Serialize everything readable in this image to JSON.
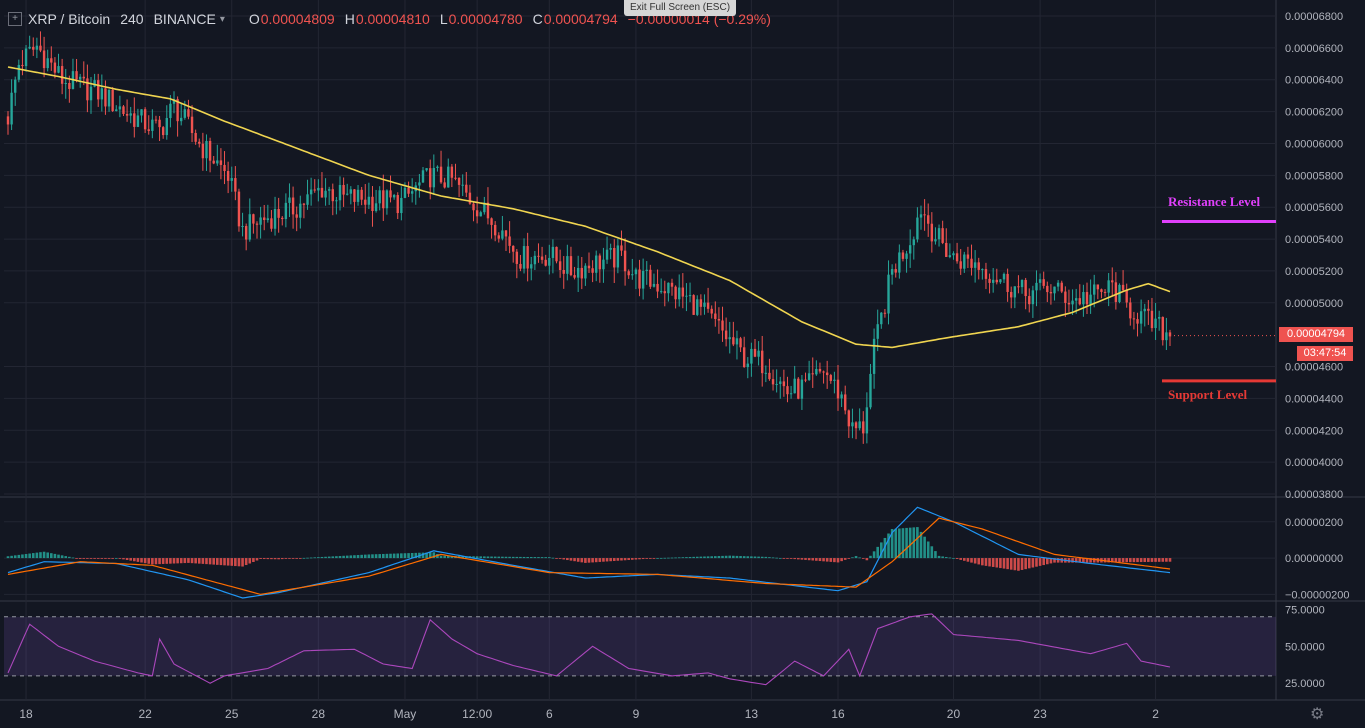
{
  "header": {
    "symbol": "XRP / Bitcoin",
    "interval": "240",
    "exchange": "BINANCE",
    "o_label": "O",
    "o_value": "0.00004809",
    "h_label": "H",
    "h_value": "0.00004810",
    "l_label": "L",
    "l_value": "0.00004780",
    "c_label": "C",
    "c_value": "0.00004794",
    "change": "−0.00000014 (−0.29%)"
  },
  "fullscreen": {
    "exit_label": "Exit Full Screen (ESC)"
  },
  "icons": {
    "toggle": "expand-icon",
    "chevron": "chevron-down-icon",
    "settings": "gear-icon"
  },
  "colors": {
    "background": "#131722",
    "up": "#26a69a",
    "down": "#ef5350",
    "ma": "#f0d550",
    "macd": "#2196f3",
    "signal": "#ff6d00",
    "rsi": "#ab47bc",
    "resistance": "#e040fb",
    "support": "#e53935"
  },
  "annotations": {
    "resistance": "Resistance Level",
    "support": "Support Level"
  },
  "last_price": {
    "value": "0.00004794",
    "countdown": "03:47:54"
  },
  "chart_data": {
    "type": "candlestick",
    "price": {
      "ylim": [
        3.8e-05,
        6.8e-05
      ],
      "yticks": [
        "0.00006800",
        "0.00006600",
        "0.00006400",
        "0.00006200",
        "0.00006000",
        "0.00005800",
        "0.00005600",
        "0.00005400",
        "0.00005200",
        "0.00005000",
        "0.00004600",
        "0.00004400",
        "0.00004200",
        "0.00004000",
        "0.00003800"
      ],
      "close_path": [
        [
          0,
          6.17e-05
        ],
        [
          3,
          6.5e-05
        ],
        [
          8,
          6.61e-05
        ],
        [
          15,
          6.4e-05
        ],
        [
          25,
          6.32e-05
        ],
        [
          33,
          6.19e-05
        ],
        [
          42,
          6.08e-05
        ],
        [
          46,
          6.24e-05
        ],
        [
          53,
          6e-05
        ],
        [
          61,
          5.8e-05
        ],
        [
          65,
          5.45e-05
        ],
        [
          70,
          5.52e-05
        ],
        [
          80,
          5.6e-05
        ],
        [
          87,
          5.72e-05
        ],
        [
          93,
          5.66e-05
        ],
        [
          101,
          5.65e-05
        ],
        [
          109,
          5.63e-05
        ],
        [
          117,
          5.8e-05
        ],
        [
          123,
          5.77e-05
        ],
        [
          129,
          5.63e-05
        ],
        [
          136,
          5.48e-05
        ],
        [
          142,
          5.28e-05
        ],
        [
          150,
          5.3e-05
        ],
        [
          156,
          5.2e-05
        ],
        [
          164,
          5.26e-05
        ],
        [
          170,
          5.29e-05
        ],
        [
          174,
          5.16e-05
        ],
        [
          182,
          5.1e-05
        ],
        [
          190,
          5e-05
        ],
        [
          197,
          4.84e-05
        ],
        [
          204,
          4.66e-05
        ],
        [
          210,
          4.62e-05
        ],
        [
          216,
          4.44e-05
        ],
        [
          222,
          4.48e-05
        ],
        [
          226,
          4.58e-05
        ],
        [
          231,
          4.41e-05
        ],
        [
          234,
          4.2e-05
        ],
        [
          237,
          4.22e-05
        ],
        [
          240,
          4.7e-05
        ],
        [
          245,
          5.2e-05
        ],
        [
          250,
          5.4e-05
        ],
        [
          253,
          5.6e-05
        ],
        [
          257,
          5.42e-05
        ],
        [
          262,
          5.28e-05
        ],
        [
          268,
          5.25e-05
        ],
        [
          275,
          5.15e-05
        ],
        [
          282,
          5.05e-05
        ],
        [
          288,
          5.1e-05
        ],
        [
          295,
          5.02e-05
        ],
        [
          302,
          5.05e-05
        ],
        [
          306,
          5.1e-05
        ],
        [
          310,
          4.98e-05
        ],
        [
          316,
          4.88e-05
        ],
        [
          322,
          4.8e-05
        ]
      ],
      "ma_path": [
        [
          0,
          6.48e-05
        ],
        [
          14,
          6.42e-05
        ],
        [
          30,
          6.34e-05
        ],
        [
          45,
          6.28e-05
        ],
        [
          60,
          6.14e-05
        ],
        [
          80,
          5.97e-05
        ],
        [
          100,
          5.8e-05
        ],
        [
          120,
          5.67e-05
        ],
        [
          140,
          5.59e-05
        ],
        [
          160,
          5.48e-05
        ],
        [
          180,
          5.32e-05
        ],
        [
          200,
          5.14e-05
        ],
        [
          220,
          4.88e-05
        ],
        [
          235,
          4.74e-05
        ],
        [
          245,
          4.72e-05
        ],
        [
          260,
          4.78e-05
        ],
        [
          280,
          4.85e-05
        ],
        [
          295,
          4.94e-05
        ],
        [
          310,
          5.08e-05
        ],
        [
          316,
          5.12e-05
        ],
        [
          322,
          5.07e-05
        ]
      ],
      "resistance": 5.51e-05,
      "support": 4.51e-05,
      "last_close": 4.794e-05
    },
    "macd": {
      "ylim": [
        -2.2e-06,
        3.2e-06
      ],
      "yticks": [
        "0.00000200",
        "0.00000000",
        "−0.00000200"
      ],
      "macd_path": [
        [
          0,
          -8e-07
        ],
        [
          10,
          -2e-07
        ],
        [
          30,
          -3e-07
        ],
        [
          50,
          -1.2e-06
        ],
        [
          65,
          -2.2e-06
        ],
        [
          75,
          -1.9e-06
        ],
        [
          100,
          -8e-07
        ],
        [
          118,
          4e-07
        ],
        [
          140,
          -4e-07
        ],
        [
          160,
          -1.1e-06
        ],
        [
          180,
          -9e-07
        ],
        [
          200,
          -1.1e-06
        ],
        [
          230,
          -1.8e-06
        ],
        [
          238,
          -1.3e-06
        ],
        [
          245,
          1.4e-06
        ],
        [
          252,
          2.8e-06
        ],
        [
          262,
          2e-06
        ],
        [
          280,
          2e-07
        ],
        [
          300,
          -3e-07
        ],
        [
          322,
          -8e-07
        ]
      ],
      "signal_path": [
        [
          0,
          -9e-07
        ],
        [
          20,
          -2e-07
        ],
        [
          40,
          -4e-07
        ],
        [
          70,
          -2e-06
        ],
        [
          100,
          -1e-06
        ],
        [
          120,
          2e-07
        ],
        [
          150,
          -8e-07
        ],
        [
          180,
          -9e-07
        ],
        [
          210,
          -1.4e-06
        ],
        [
          235,
          -1.6e-06
        ],
        [
          245,
          -2e-07
        ],
        [
          258,
          2.2e-06
        ],
        [
          270,
          1.6e-06
        ],
        [
          290,
          2e-07
        ],
        [
          322,
          -6e-07
        ]
      ]
    },
    "rsi": {
      "ylim": [
        15,
        78
      ],
      "yticks": [
        "75.0000",
        "50.0000",
        "25.0000"
      ],
      "bands": [
        70,
        30
      ],
      "rsi_path": [
        [
          0,
          32
        ],
        [
          6,
          65
        ],
        [
          14,
          50
        ],
        [
          24,
          40
        ],
        [
          36,
          32
        ],
        [
          40,
          30
        ],
        [
          42,
          55
        ],
        [
          46,
          38
        ],
        [
          56,
          25
        ],
        [
          60,
          30
        ],
        [
          72,
          35
        ],
        [
          82,
          47
        ],
        [
          96,
          48
        ],
        [
          104,
          38
        ],
        [
          112,
          35
        ],
        [
          117,
          68
        ],
        [
          123,
          55
        ],
        [
          130,
          45
        ],
        [
          140,
          37
        ],
        [
          152,
          30
        ],
        [
          162,
          50
        ],
        [
          172,
          35
        ],
        [
          184,
          30
        ],
        [
          194,
          32
        ],
        [
          200,
          28
        ],
        [
          210,
          24
        ],
        [
          218,
          40
        ],
        [
          226,
          30
        ],
        [
          233,
          48
        ],
        [
          236,
          30
        ],
        [
          241,
          62
        ],
        [
          250,
          70
        ],
        [
          256,
          72
        ],
        [
          262,
          58
        ],
        [
          280,
          54
        ],
        [
          300,
          45
        ],
        [
          310,
          52
        ],
        [
          314,
          40
        ],
        [
          322,
          36
        ]
      ]
    },
    "xaxis": [
      {
        "label": "18",
        "i": 5
      },
      {
        "label": "22",
        "i": 38
      },
      {
        "label": "25",
        "i": 62
      },
      {
        "label": "28",
        "i": 86
      },
      {
        "label": "May",
        "i": 110
      },
      {
        "label": "12:00",
        "i": 130
      },
      {
        "label": "6",
        "i": 150
      },
      {
        "label": "9",
        "i": 174
      },
      {
        "label": "13",
        "i": 206
      },
      {
        "label": "16",
        "i": 230
      },
      {
        "label": "20",
        "i": 262
      },
      {
        "label": "23",
        "i": 286
      },
      {
        "label": "2",
        "i": 318
      }
    ]
  }
}
